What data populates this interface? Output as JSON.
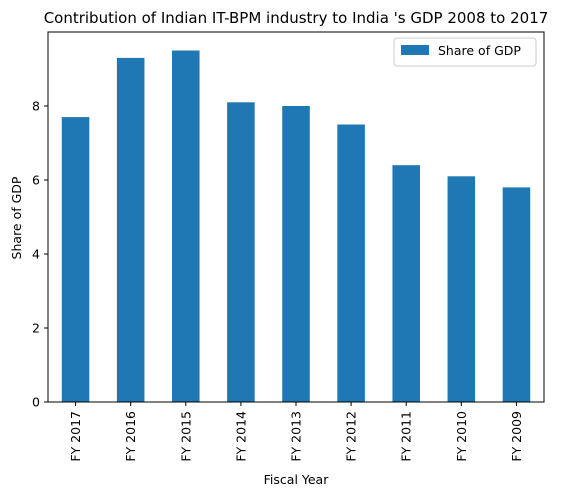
{
  "chart_data": {
    "type": "bar",
    "title": "Contribution of Indian IT-BPM industry to India 's GDP 2008 to 2017",
    "xlabel": "Fiscal Year",
    "ylabel": "Share of GDP",
    "categories": [
      "FY 2017",
      "FY 2016",
      "FY 2015",
      "FY 2014",
      "FY 2013",
      "FY 2012",
      "FY 2011",
      "FY 2010",
      "FY 2009"
    ],
    "series": [
      {
        "name": "Share of GDP",
        "values": [
          7.7,
          9.3,
          9.5,
          8.1,
          8.0,
          7.5,
          6.4,
          6.1,
          5.8
        ]
      }
    ],
    "ylim": [
      0,
      10
    ],
    "yticks": [
      0,
      2,
      4,
      6,
      8
    ],
    "grid": false,
    "legend_position": "top-right",
    "colors": {
      "bar": "#1f77b4"
    }
  }
}
